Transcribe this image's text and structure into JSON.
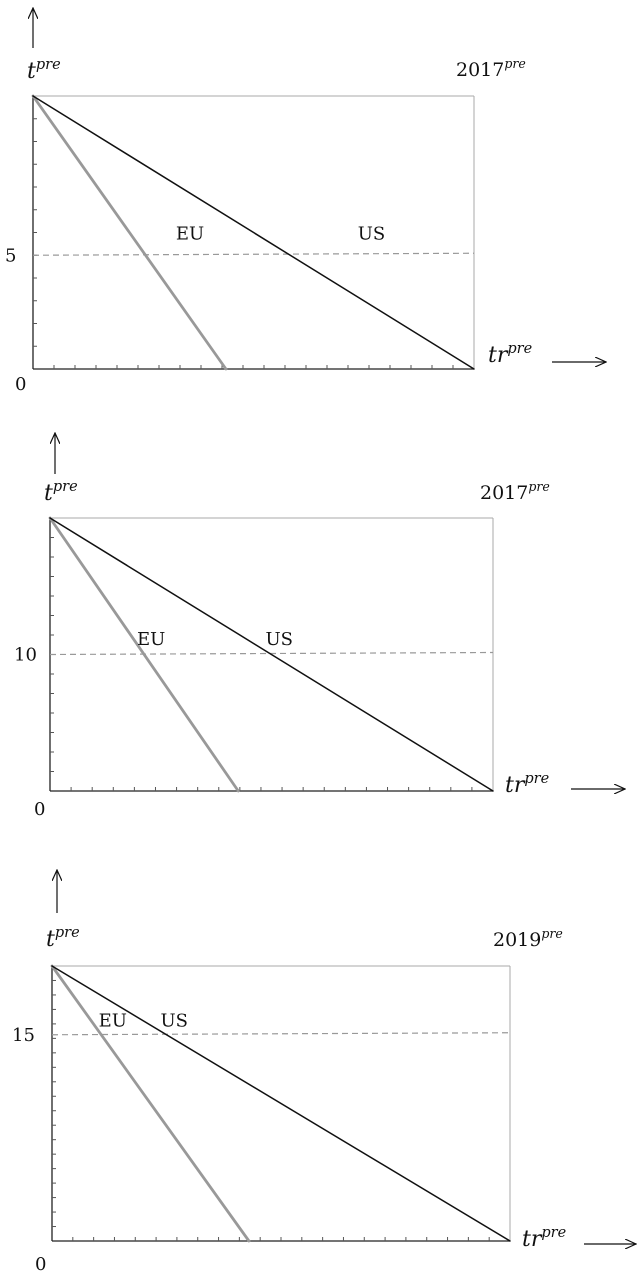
{
  "chart_data": [
    {
      "type": "line",
      "title": "2017^pre",
      "title_main": "2017",
      "title_sup": "pre",
      "ylabel_main": "t",
      "ylabel_sup": "pre",
      "xlabel_main": "tr",
      "xlabel_sup": "pre",
      "origin_label": "0",
      "y_tick_label": "5",
      "y_tick_value": 5,
      "ylim": [
        0,
        12
      ],
      "xlim": [
        0,
        16
      ],
      "series": [
        {
          "name": "EU",
          "x": [
            0,
            7
          ],
          "y": [
            12,
            0
          ],
          "color": "#999999"
        },
        {
          "name": "US",
          "x": [
            0,
            16
          ],
          "y": [
            12,
            0
          ],
          "color": "#111111"
        }
      ],
      "reference_line": {
        "y": 5,
        "style": "dashed"
      },
      "labels": [
        {
          "text": "EU",
          "x": 5.4,
          "y": 5.7
        },
        {
          "text": "US",
          "x": 12.0,
          "y": 5.7
        }
      ]
    },
    {
      "type": "line",
      "title": "2017^pre",
      "title_main": "2017",
      "title_sup": "pre",
      "ylabel_main": "t",
      "ylabel_sup": "pre",
      "xlabel_main": "tr",
      "xlabel_sup": "pre",
      "origin_label": "0",
      "y_tick_label": "10",
      "y_tick_value": 10,
      "ylim": [
        0,
        20
      ],
      "xlim": [
        0,
        20
      ],
      "series": [
        {
          "name": "EU",
          "x": [
            0,
            8.5
          ],
          "y": [
            20,
            0
          ],
          "color": "#999999"
        },
        {
          "name": "US",
          "x": [
            0,
            20
          ],
          "y": [
            20,
            0
          ],
          "color": "#111111"
        }
      ],
      "reference_line": {
        "y": 10,
        "style": "dashed"
      },
      "labels": [
        {
          "text": "EU",
          "x": 4.2,
          "y": 10.7
        },
        {
          "text": "US",
          "x": 10.0,
          "y": 10.7
        }
      ]
    },
    {
      "type": "line",
      "title": "2019^pre",
      "title_main": "2019",
      "title_sup": "pre",
      "ylabel_main": "t",
      "ylabel_sup": "pre",
      "xlabel_main": "tr",
      "xlabel_sup": "pre",
      "origin_label": "0",
      "y_tick_label": "15",
      "y_tick_value": 15,
      "ylim": [
        0,
        20
      ],
      "xlim": [
        0,
        20
      ],
      "series": [
        {
          "name": "EU",
          "x": [
            0,
            8.6
          ],
          "y": [
            20,
            0
          ],
          "color": "#999999"
        },
        {
          "name": "US",
          "x": [
            0,
            20
          ],
          "y": [
            20,
            0
          ],
          "color": "#111111"
        }
      ],
      "reference_line": {
        "y": 15,
        "style": "dashed"
      },
      "labels": [
        {
          "text": "EU",
          "x": 2.3,
          "y": 15.6
        },
        {
          "text": "US",
          "x": 5.0,
          "y": 15.6
        }
      ]
    }
  ]
}
